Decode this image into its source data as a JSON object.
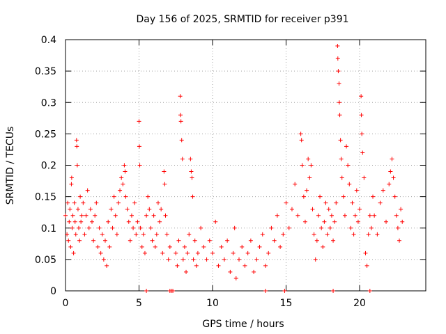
{
  "chart_data": {
    "type": "scatter",
    "title": "Day 156 of 2025, SRMTID for receiver p391",
    "xlabel": "GPS time / hours",
    "ylabel": "SRMTID / TECUs",
    "xlim": [
      0,
      24.5
    ],
    "ylim": [
      0,
      0.4
    ],
    "xticks": [
      0,
      5,
      10,
      15,
      20
    ],
    "xtick_labels": [
      "0",
      "5",
      "10",
      "15",
      "20"
    ],
    "yticks": [
      0,
      0.05,
      0.1,
      0.15,
      0.2,
      0.25,
      0.3,
      0.35,
      0.4
    ],
    "ytick_labels": [
      "0",
      "0.05",
      "0.1",
      "0.15",
      "0.2",
      "0.25",
      "0.3",
      "0.35",
      "0.4"
    ],
    "grid": true,
    "marker": "plus",
    "series_color": "#ff0000",
    "series": [
      {
        "name": "SRMTID",
        "points": [
          [
            0.0,
            0.12
          ],
          [
            0.1,
            0.09
          ],
          [
            0.15,
            0.14
          ],
          [
            0.2,
            0.08
          ],
          [
            0.25,
            0.11
          ],
          [
            0.3,
            0.13
          ],
          [
            0.35,
            0.07
          ],
          [
            0.4,
            0.17
          ],
          [
            0.42,
            0.18
          ],
          [
            0.45,
            0.1
          ],
          [
            0.5,
            0.12
          ],
          [
            0.55,
            0.06
          ],
          [
            0.6,
            0.14
          ],
          [
            0.65,
            0.11
          ],
          [
            0.7,
            0.09
          ],
          [
            0.75,
            0.24
          ],
          [
            0.77,
            0.23
          ],
          [
            0.8,
            0.2
          ],
          [
            0.85,
            0.13
          ],
          [
            0.9,
            0.1
          ],
          [
            0.95,
            0.08
          ],
          [
            1.0,
            0.15
          ],
          [
            1.05,
            0.11
          ],
          [
            1.1,
            0.12
          ],
          [
            1.2,
            0.14
          ],
          [
            1.3,
            0.09
          ],
          [
            1.4,
            0.12
          ],
          [
            1.5,
            0.16
          ],
          [
            1.6,
            0.1
          ],
          [
            1.7,
            0.13
          ],
          [
            1.8,
            0.11
          ],
          [
            1.9,
            0.08
          ],
          [
            2.0,
            0.12
          ],
          [
            2.1,
            0.14
          ],
          [
            2.2,
            0.07
          ],
          [
            2.3,
            0.1
          ],
          [
            2.4,
            0.06
          ],
          [
            2.5,
            0.09
          ],
          [
            2.6,
            0.05
          ],
          [
            2.7,
            0.08
          ],
          [
            2.8,
            0.04
          ],
          [
            2.9,
            0.11
          ],
          [
            3.0,
            0.07
          ],
          [
            3.1,
            0.13
          ],
          [
            3.2,
            0.1
          ],
          [
            3.3,
            0.15
          ],
          [
            3.4,
            0.12
          ],
          [
            3.5,
            0.09
          ],
          [
            3.6,
            0.14
          ],
          [
            3.7,
            0.16
          ],
          [
            3.8,
            0.18
          ],
          [
            3.9,
            0.17
          ],
          [
            4.0,
            0.2
          ],
          [
            4.05,
            0.19
          ],
          [
            4.1,
            0.15
          ],
          [
            4.2,
            0.13
          ],
          [
            4.3,
            0.11
          ],
          [
            4.4,
            0.08
          ],
          [
            4.5,
            0.12
          ],
          [
            4.6,
            0.1
          ],
          [
            4.7,
            0.14
          ],
          [
            4.8,
            0.09
          ],
          [
            4.9,
            0.11
          ],
          [
            5.0,
            0.27
          ],
          [
            5.02,
            0.23
          ],
          [
            5.05,
            0.2
          ],
          [
            5.1,
            0.1
          ],
          [
            5.2,
            0.07
          ],
          [
            5.3,
            0.09
          ],
          [
            5.4,
            0.06
          ],
          [
            5.5,
            0.12
          ],
          [
            5.6,
            0.15
          ],
          [
            5.7,
            0.13
          ],
          [
            5.8,
            0.1
          ],
          [
            5.9,
            0.08
          ],
          [
            6.0,
            0.12
          ],
          [
            6.1,
            0.07
          ],
          [
            6.2,
            0.09
          ],
          [
            6.3,
            0.14
          ],
          [
            6.4,
            0.11
          ],
          [
            6.5,
            0.13
          ],
          [
            6.6,
            0.06
          ],
          [
            6.7,
            0.19
          ],
          [
            6.75,
            0.17
          ],
          [
            6.8,
            0.12
          ],
          [
            6.9,
            0.09
          ],
          [
            7.0,
            0.05
          ],
          [
            7.1,
            0.07
          ],
          [
            7.5,
            0.06
          ],
          [
            7.6,
            0.04
          ],
          [
            7.7,
            0.08
          ],
          [
            7.8,
            0.31
          ],
          [
            7.82,
            0.28
          ],
          [
            7.85,
            0.27
          ],
          [
            7.9,
            0.24
          ],
          [
            7.95,
            0.21
          ],
          [
            8.0,
            0.05
          ],
          [
            8.1,
            0.07
          ],
          [
            8.2,
            0.03
          ],
          [
            8.3,
            0.06
          ],
          [
            8.4,
            0.09
          ],
          [
            8.5,
            0.21
          ],
          [
            8.55,
            0.19
          ],
          [
            8.6,
            0.18
          ],
          [
            8.65,
            0.15
          ],
          [
            8.7,
            0.05
          ],
          [
            8.8,
            0.08
          ],
          [
            8.9,
            0.04
          ],
          [
            9.0,
            0.06
          ],
          [
            9.2,
            0.1
          ],
          [
            9.4,
            0.07
          ],
          [
            9.6,
            0.05
          ],
          [
            9.8,
            0.08
          ],
          [
            10.0,
            0.06
          ],
          [
            10.2,
            0.11
          ],
          [
            10.4,
            0.04
          ],
          [
            10.6,
            0.07
          ],
          [
            10.8,
            0.05
          ],
          [
            11.0,
            0.08
          ],
          [
            11.2,
            0.03
          ],
          [
            11.4,
            0.06
          ],
          [
            11.5,
            0.1
          ],
          [
            11.6,
            0.02
          ],
          [
            11.8,
            0.05
          ],
          [
            12.0,
            0.07
          ],
          [
            12.2,
            0.04
          ],
          [
            12.4,
            0.06
          ],
          [
            12.6,
            0.08
          ],
          [
            12.8,
            0.03
          ],
          [
            13.0,
            0.05
          ],
          [
            13.2,
            0.07
          ],
          [
            13.4,
            0.09
          ],
          [
            13.6,
            0.04
          ],
          [
            13.8,
            0.06
          ],
          [
            14.0,
            0.1
          ],
          [
            14.2,
            0.08
          ],
          [
            14.4,
            0.12
          ],
          [
            14.6,
            0.07
          ],
          [
            14.8,
            0.09
          ],
          [
            15.0,
            0.14
          ],
          [
            15.2,
            0.1
          ],
          [
            15.4,
            0.13
          ],
          [
            15.6,
            0.17
          ],
          [
            15.8,
            0.12
          ],
          [
            16.0,
            0.25
          ],
          [
            16.05,
            0.24
          ],
          [
            16.1,
            0.2
          ],
          [
            16.2,
            0.15
          ],
          [
            16.3,
            0.11
          ],
          [
            16.4,
            0.16
          ],
          [
            16.5,
            0.21
          ],
          [
            16.6,
            0.18
          ],
          [
            16.7,
            0.2
          ],
          [
            16.8,
            0.13
          ],
          [
            16.9,
            0.09
          ],
          [
            17.0,
            0.05
          ],
          [
            17.1,
            0.08
          ],
          [
            17.2,
            0.12
          ],
          [
            17.3,
            0.15
          ],
          [
            17.4,
            0.1
          ],
          [
            17.5,
            0.07
          ],
          [
            17.6,
            0.11
          ],
          [
            17.7,
            0.14
          ],
          [
            17.8,
            0.09
          ],
          [
            17.9,
            0.13
          ],
          [
            18.0,
            0.1
          ],
          [
            18.1,
            0.12
          ],
          [
            18.2,
            0.08
          ],
          [
            18.3,
            0.11
          ],
          [
            18.4,
            0.14
          ],
          [
            18.5,
            0.39
          ],
          [
            18.52,
            0.37
          ],
          [
            18.55,
            0.35
          ],
          [
            18.6,
            0.33
          ],
          [
            18.62,
            0.3
          ],
          [
            18.65,
            0.28
          ],
          [
            18.7,
            0.24
          ],
          [
            18.75,
            0.21
          ],
          [
            18.8,
            0.18
          ],
          [
            18.9,
            0.15
          ],
          [
            19.0,
            0.12
          ],
          [
            19.1,
            0.23
          ],
          [
            19.2,
            0.2
          ],
          [
            19.3,
            0.17
          ],
          [
            19.4,
            0.1
          ],
          [
            19.5,
            0.14
          ],
          [
            19.6,
            0.09
          ],
          [
            19.7,
            0.12
          ],
          [
            19.8,
            0.16
          ],
          [
            19.9,
            0.11
          ],
          [
            20.0,
            0.13
          ],
          [
            20.1,
            0.31
          ],
          [
            20.12,
            0.28
          ],
          [
            20.15,
            0.25
          ],
          [
            20.2,
            0.22
          ],
          [
            20.3,
            0.18
          ],
          [
            20.4,
            0.06
          ],
          [
            20.5,
            0.04
          ],
          [
            20.6,
            0.09
          ],
          [
            20.7,
            0.12
          ],
          [
            20.8,
            0.1
          ],
          [
            20.9,
            0.15
          ],
          [
            21.0,
            0.12
          ],
          [
            21.2,
            0.09
          ],
          [
            21.4,
            0.14
          ],
          [
            21.6,
            0.16
          ],
          [
            21.8,
            0.11
          ],
          [
            22.0,
            0.17
          ],
          [
            22.1,
            0.19
          ],
          [
            22.2,
            0.21
          ],
          [
            22.3,
            0.18
          ],
          [
            22.4,
            0.15
          ],
          [
            22.5,
            0.12
          ],
          [
            22.6,
            0.1
          ],
          [
            22.7,
            0.08
          ],
          [
            22.8,
            0.13
          ],
          [
            22.9,
            0.11
          ]
        ]
      }
    ],
    "baseline_points": [
      [
        5.5,
        0
      ],
      [
        7.1,
        0
      ],
      [
        7.2,
        0
      ],
      [
        7.3,
        0
      ],
      [
        13.6,
        0
      ],
      [
        14.9,
        0
      ],
      [
        18.2,
        0
      ],
      [
        20.7,
        0
      ]
    ]
  }
}
